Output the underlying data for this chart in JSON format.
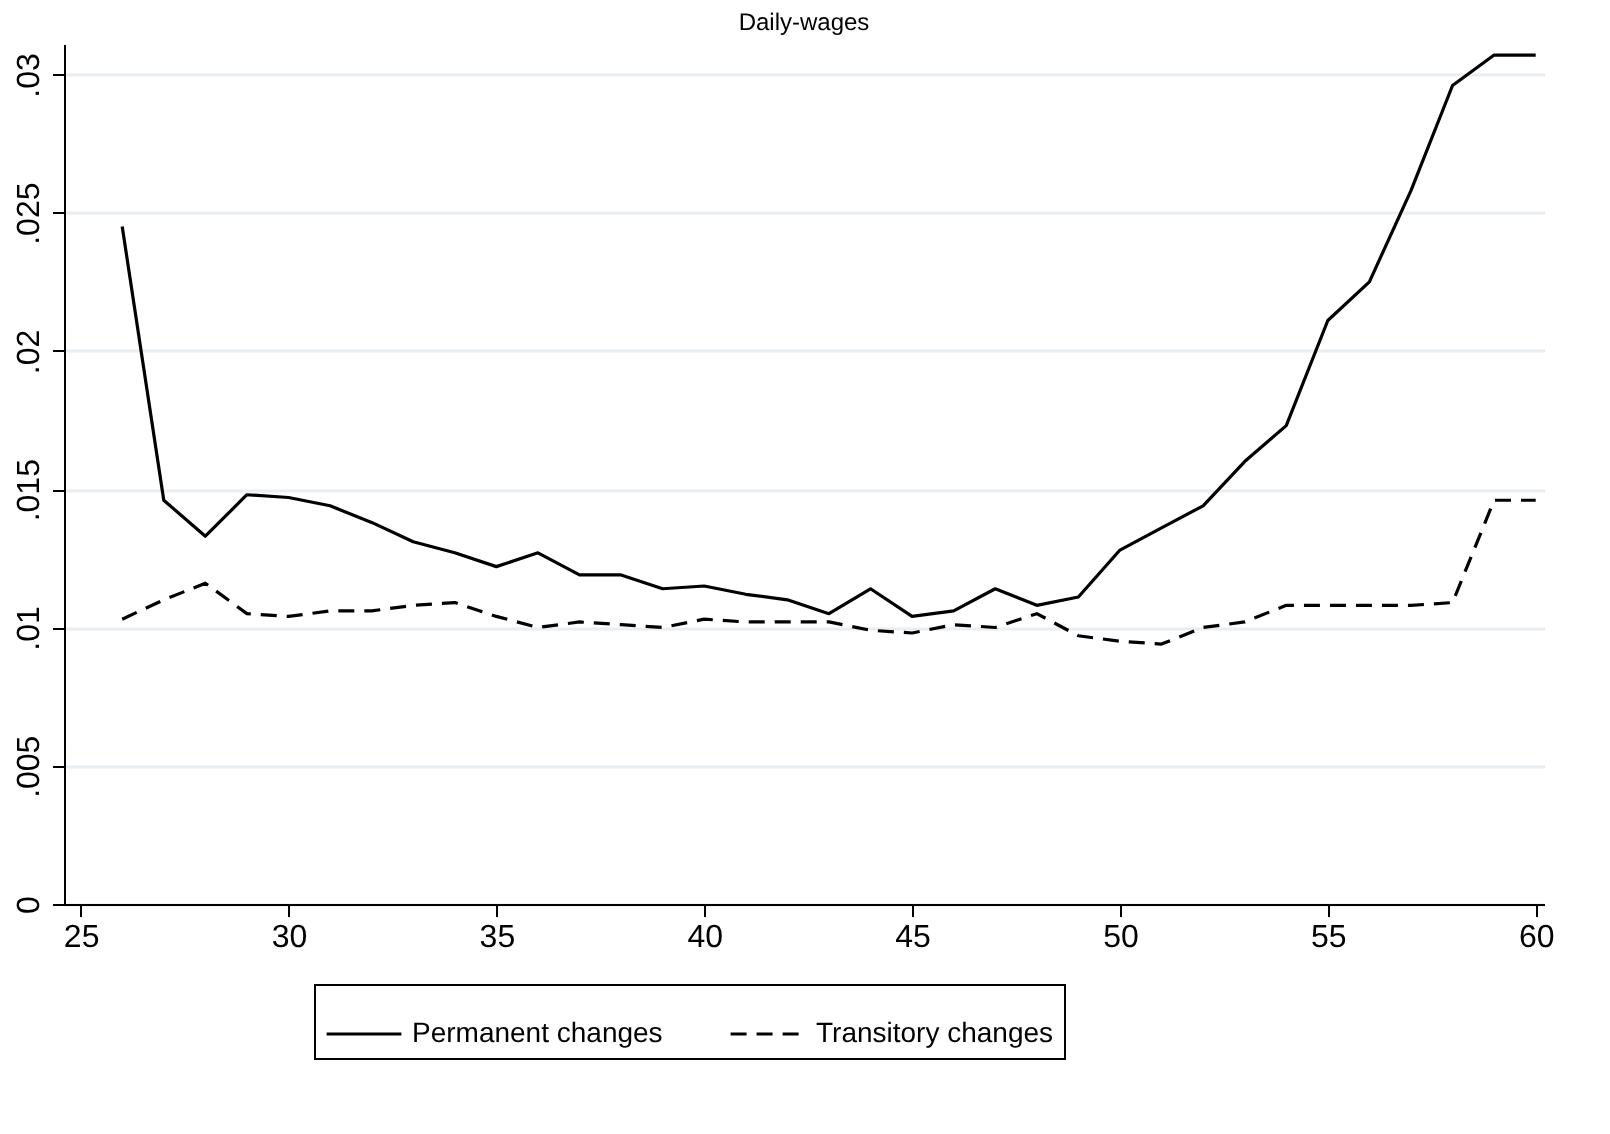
{
  "chart_data": {
    "type": "line",
    "title": "Daily-wages",
    "x": [
      26,
      27,
      28,
      29,
      30,
      31,
      32,
      33,
      34,
      35,
      36,
      37,
      38,
      39,
      40,
      41,
      42,
      43,
      44,
      45,
      46,
      47,
      48,
      49,
      50,
      51,
      52,
      53,
      54,
      55,
      56,
      57,
      58,
      59,
      60
    ],
    "series": [
      {
        "name": "Permanent changes",
        "color": "#000000",
        "line_style": "solid",
        "values": [
          0.0245,
          0.0146,
          0.0133,
          0.0148,
          0.0147,
          0.0144,
          0.0138,
          0.0131,
          0.0127,
          0.0122,
          0.0127,
          0.0119,
          0.0119,
          0.0114,
          0.0115,
          0.0112,
          0.011,
          0.0105,
          0.0114,
          0.0104,
          0.0106,
          0.0114,
          0.0108,
          0.0111,
          0.0128,
          0.0136,
          0.0144,
          0.016,
          0.0173,
          0.0211,
          0.0225,
          0.0258,
          0.0296,
          0.0307,
          0.0307
        ]
      },
      {
        "name": "Transitory changes",
        "color": "#000000",
        "line_style": "dashed",
        "values": [
          0.0103,
          0.011,
          0.0116,
          0.0105,
          0.0104,
          0.0106,
          0.0106,
          0.0108,
          0.0109,
          0.0104,
          0.01,
          0.0102,
          0.0101,
          0.01,
          0.0103,
          0.0102,
          0.0102,
          0.0102,
          0.0099,
          0.0098,
          0.0101,
          0.01,
          0.0105,
          0.0097,
          0.0095,
          0.0094,
          0.01,
          0.0102,
          0.0108,
          0.0108,
          0.0108,
          0.0108,
          0.0109,
          0.0146,
          0.0146
        ]
      }
    ],
    "xlim": [
      24.6,
      60.2
    ],
    "xticks": [
      25,
      30,
      35,
      40,
      45,
      50,
      55,
      60
    ],
    "ylim": [
      0,
      0.0311
    ],
    "yticks": [
      {
        "value": 0,
        "label": "0"
      },
      {
        "value": 0.005,
        "label": ".005"
      },
      {
        "value": 0.01,
        "label": ".01"
      },
      {
        "value": 0.015,
        "label": ".015"
      },
      {
        "value": 0.02,
        "label": ".02"
      },
      {
        "value": 0.025,
        "label": ".025"
      },
      {
        "value": 0.03,
        "label": ".03"
      }
    ],
    "grid": "y",
    "legend": "bottom",
    "marker": "none"
  }
}
